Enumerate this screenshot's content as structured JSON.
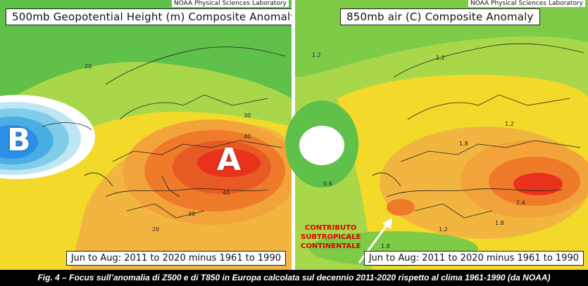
{
  "left_panel": {
    "credit": "NOAA Physical Sciences Laboratory",
    "title": "500mb Geopotential Height (m) Composite Anomaly",
    "period": "Jun to Aug: 2011 to 2020 minus 1961 to 1990",
    "low_marker": "B",
    "high_marker": "A",
    "contour_labels": [
      "20",
      "30",
      "40",
      "40",
      "30",
      "20"
    ]
  },
  "right_panel": {
    "credit": "NOAA Physical Sciences Laboratory",
    "title": "850mb air (C) Composite Anomaly",
    "period": "Jun to Aug: 2011 to 2020 minus 1961 to 1990",
    "contour_labels": [
      "1.2",
      "1.2",
      "1.2",
      "0.6",
      "1.8",
      "2.4",
      "1.8",
      "1.2",
      "1.8"
    ],
    "annotation": [
      "CONTRIBUTO",
      "SUBTROPICALE",
      "CONTINENTALE"
    ]
  },
  "caption": "Fig. 4 – Focus sull’anomalia di Z500 e di T850 in Europa calcolata sul decennio 2011-2020 rispetto al clima 1961-1990 (da NOAA)",
  "colors": {
    "green": "#5fc04a",
    "light_green": "#a8d84a",
    "yellow": "#f2d92a",
    "orange": "#f2a33a",
    "dark_orange": "#ee7a2a",
    "red": "#e8321e",
    "blue": "#2c8ee6",
    "annotation_red": "#e00000"
  }
}
